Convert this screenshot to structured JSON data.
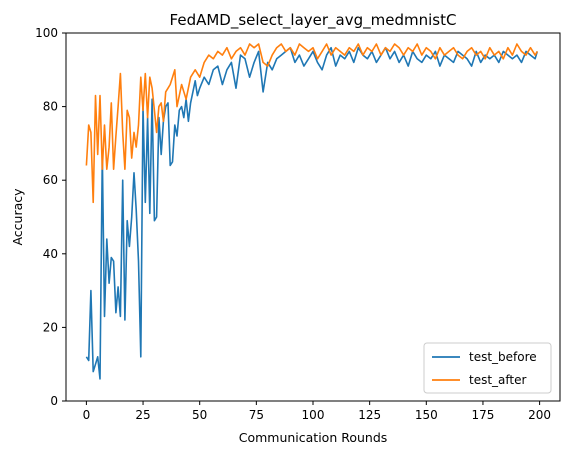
{
  "chart_data": {
    "type": "line",
    "title": "FedAMD_select_layer_avg_medmnistC",
    "xlabel": "Communication Rounds",
    "ylabel": "Accuracy",
    "xlim": [
      -9,
      209
    ],
    "ylim": [
      0,
      100
    ],
    "xticks": [
      0,
      25,
      50,
      75,
      100,
      125,
      150,
      175,
      200
    ],
    "yticks": [
      0,
      20,
      40,
      60,
      80,
      100
    ],
    "xtick_labels": [
      "0",
      "25",
      "50",
      "75",
      "100",
      "125",
      "150",
      "175",
      "200"
    ],
    "ytick_labels": [
      "0",
      "20",
      "40",
      "60",
      "80",
      "100"
    ],
    "grid": false,
    "legend_position": "lower-right",
    "series": [
      {
        "name": "test_before",
        "color": "#1f77b4",
        "x": [
          0,
          1,
          2,
          3,
          4,
          5,
          6,
          7,
          8,
          9,
          10,
          11,
          12,
          13,
          14,
          15,
          16,
          17,
          18,
          19,
          20,
          21,
          22,
          23,
          24,
          25,
          26,
          27,
          28,
          29,
          30,
          31,
          32,
          33,
          34,
          35,
          36,
          37,
          38,
          39,
          40,
          41,
          42,
          43,
          44,
          45,
          46,
          47,
          48,
          49,
          50,
          52,
          54,
          56,
          58,
          60,
          62,
          64,
          66,
          68,
          70,
          72,
          74,
          76,
          78,
          80,
          82,
          84,
          86,
          88,
          90,
          92,
          94,
          96,
          98,
          100,
          102,
          104,
          106,
          108,
          110,
          112,
          114,
          116,
          118,
          120,
          122,
          124,
          126,
          128,
          130,
          132,
          134,
          136,
          138,
          140,
          142,
          144,
          146,
          148,
          150,
          152,
          154,
          156,
          158,
          160,
          162,
          164,
          166,
          168,
          170,
          172,
          174,
          176,
          178,
          180,
          182,
          184,
          186,
          188,
          190,
          192,
          194,
          196,
          198,
          199
        ],
        "y": [
          12,
          11,
          30,
          8,
          10,
          12,
          6,
          67,
          23,
          44,
          32,
          39,
          38,
          24,
          31,
          23,
          60,
          22,
          49,
          42,
          50,
          62,
          52,
          38,
          12,
          80,
          54,
          77,
          51,
          82,
          49,
          50,
          77,
          67,
          76,
          80,
          81,
          64,
          65,
          75,
          72,
          79,
          80,
          77,
          82,
          76,
          81,
          84,
          87,
          83,
          85,
          88,
          86,
          90,
          91,
          86,
          90,
          92,
          85,
          94,
          93,
          88,
          92,
          95,
          84,
          92,
          90,
          93,
          94,
          95,
          96,
          92,
          94,
          91,
          93,
          95,
          92,
          90,
          94,
          96,
          91,
          94,
          93,
          95,
          92,
          96,
          94,
          93,
          95,
          92,
          94,
          96,
          93,
          95,
          92,
          94,
          91,
          95,
          93,
          92,
          94,
          93,
          95,
          91,
          94,
          93,
          92,
          95,
          94,
          93,
          91,
          95,
          92,
          94,
          93,
          94,
          92,
          95,
          94,
          93,
          94,
          92,
          95,
          94,
          93,
          95
        ]
      },
      {
        "name": "test_after",
        "color": "#ff7f0e",
        "x": [
          0,
          1,
          2,
          3,
          4,
          5,
          6,
          7,
          8,
          9,
          10,
          11,
          12,
          13,
          14,
          15,
          16,
          17,
          18,
          19,
          20,
          21,
          22,
          23,
          24,
          25,
          26,
          27,
          28,
          29,
          30,
          31,
          32,
          33,
          34,
          35,
          36,
          37,
          38,
          39,
          40,
          42,
          44,
          46,
          48,
          50,
          52,
          54,
          56,
          58,
          60,
          62,
          64,
          66,
          68,
          70,
          72,
          74,
          76,
          78,
          80,
          82,
          84,
          86,
          88,
          90,
          92,
          94,
          96,
          98,
          100,
          102,
          104,
          106,
          108,
          110,
          112,
          114,
          116,
          118,
          120,
          122,
          124,
          126,
          128,
          130,
          132,
          134,
          136,
          138,
          140,
          142,
          144,
          146,
          148,
          150,
          152,
          154,
          156,
          158,
          160,
          162,
          164,
          166,
          168,
          170,
          172,
          174,
          176,
          178,
          180,
          182,
          184,
          186,
          188,
          190,
          192,
          194,
          196,
          198,
          199
        ],
        "y": [
          64,
          75,
          73,
          54,
          83,
          67,
          83,
          63,
          75,
          63,
          69,
          81,
          63,
          72,
          80,
          89,
          73,
          63,
          79,
          77,
          66,
          73,
          69,
          75,
          88,
          79,
          89,
          77,
          88,
          85,
          79,
          73,
          80,
          81,
          76,
          84,
          85,
          86,
          88,
          90,
          80,
          86,
          82,
          88,
          90,
          88,
          92,
          94,
          93,
          95,
          94,
          96,
          93,
          95,
          96,
          94,
          97,
          96,
          97,
          92,
          91,
          94,
          96,
          97,
          95,
          96,
          94,
          97,
          96,
          95,
          96,
          93,
          95,
          97,
          94,
          96,
          95,
          94,
          96,
          95,
          97,
          94,
          96,
          95,
          97,
          94,
          96,
          95,
          97,
          96,
          94,
          96,
          95,
          97,
          94,
          96,
          95,
          93,
          96,
          94,
          95,
          96,
          94,
          93,
          95,
          96,
          94,
          95,
          93,
          96,
          94,
          95,
          93,
          96,
          94,
          97,
          95,
          94,
          96,
          94,
          95
        ]
      }
    ]
  }
}
